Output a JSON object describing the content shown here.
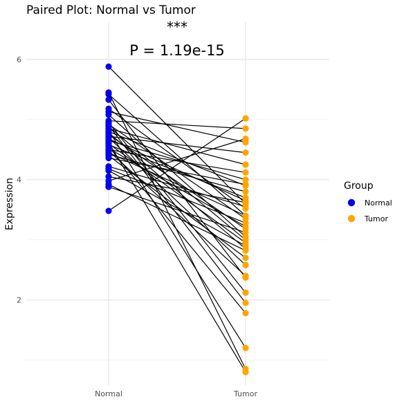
{
  "chart_data": {
    "type": "scatter",
    "subtype": "paired",
    "title": "Paired Plot: Normal vs Tumor",
    "significance": "***",
    "p_value_label": "P = 1.19e-15",
    "xlabel": "",
    "ylabel": "Expression",
    "categories": [
      "Normal",
      "Tumor"
    ],
    "yticks": [
      "2",
      "4",
      "6"
    ],
    "ylim": [
      0.58,
      6.62
    ],
    "grid": true,
    "legend": {
      "title": "Group",
      "position": "right",
      "entries": [
        {
          "name": "Normal",
          "color": "#0000ee"
        },
        {
          "name": "Tumor",
          "color": "#ffa500"
        }
      ]
    },
    "pairs": [
      [
        5.88,
        3.6
      ],
      [
        5.45,
        0.85
      ],
      [
        5.42,
        3.4
      ],
      [
        5.33,
        2.37
      ],
      [
        5.18,
        3.52
      ],
      [
        5.13,
        4.62
      ],
      [
        5.08,
        3.05
      ],
      [
        4.98,
        4.85
      ],
      [
        4.95,
        2.12
      ],
      [
        4.92,
        3.35
      ],
      [
        4.9,
        1.95
      ],
      [
        4.88,
        3.0
      ],
      [
        4.85,
        4.25
      ],
      [
        4.82,
        1.2
      ],
      [
        4.8,
        3.9
      ],
      [
        4.78,
        2.85
      ],
      [
        4.75,
        3.18
      ],
      [
        4.72,
        4.45
      ],
      [
        4.7,
        2.58
      ],
      [
        4.68,
        3.65
      ],
      [
        4.65,
        4.0
      ],
      [
        4.62,
        0.8
      ],
      [
        4.6,
        2.95
      ],
      [
        4.58,
        3.7
      ],
      [
        4.55,
        1.78
      ],
      [
        4.52,
        3.22
      ],
      [
        4.5,
        4.12
      ],
      [
        4.48,
        2.4
      ],
      [
        4.45,
        3.4
      ],
      [
        4.42,
        3.8
      ],
      [
        4.4,
        2.7
      ],
      [
        4.36,
        3.92
      ],
      [
        4.22,
        3.55
      ],
      [
        4.18,
        3.28
      ],
      [
        4.15,
        2.9
      ],
      [
        4.05,
        3.62
      ],
      [
        3.98,
        4.68
      ],
      [
        3.92,
        2.82
      ],
      [
        3.88,
        3.12
      ],
      [
        3.48,
        5.02
      ]
    ]
  }
}
